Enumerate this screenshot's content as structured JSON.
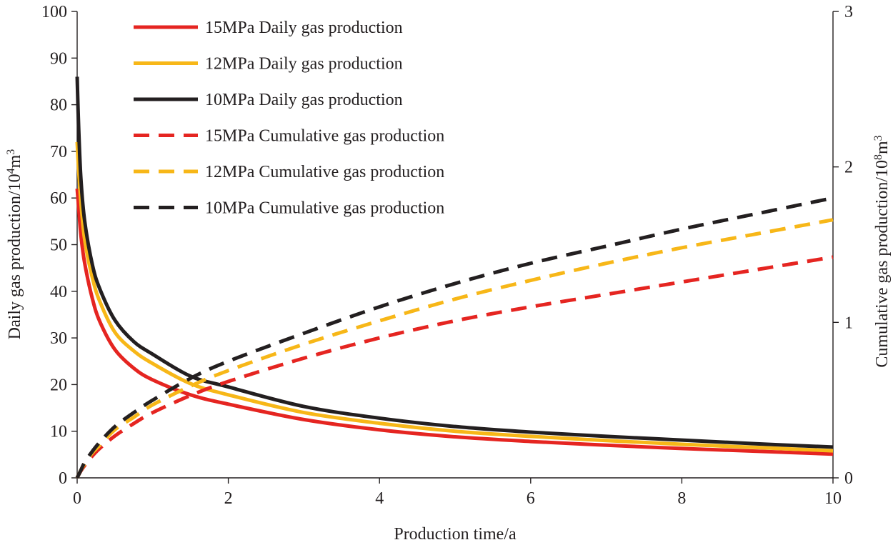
{
  "colors": {
    "red": "#e52521",
    "yellow": "#f7b718",
    "black": "#231f20"
  },
  "chart_data": {
    "type": "line",
    "x_axis": {
      "label": "Production time/a",
      "range": [
        0,
        10
      ],
      "ticks": [
        0,
        2,
        4,
        6,
        8,
        10
      ],
      "tick_labels": [
        "0",
        "2",
        "4",
        "6",
        "8",
        "10"
      ]
    },
    "y_axis_left": {
      "label_main": "Daily gas production/10",
      "label_sup1": "4",
      "label_mid": "m",
      "label_sup2": "3",
      "range": [
        0,
        100
      ],
      "ticks": [
        0,
        10,
        20,
        30,
        40,
        50,
        60,
        70,
        80,
        90,
        100
      ],
      "tick_labels": [
        "0",
        "10",
        "20",
        "30",
        "40",
        "50",
        "60",
        "70",
        "80",
        "90",
        "100"
      ]
    },
    "y_axis_right": {
      "label_main": "Cumulative gas production/10",
      "label_sup1": "8",
      "label_mid": "m",
      "label_sup2": "3",
      "range": [
        0,
        3
      ],
      "ticks": [
        0,
        1,
        2,
        3
      ],
      "tick_labels": [
        "0",
        "1",
        "2",
        "3"
      ]
    },
    "x": [
      0,
      0.02,
      0.05,
      0.1,
      0.2,
      0.3,
      0.5,
      0.75,
      1,
      1.5,
      2,
      3,
      4,
      5,
      6,
      7,
      8,
      9,
      10
    ],
    "series": [
      {
        "name": "15MPa Daily gas production",
        "axis": "left",
        "color_key": "red",
        "style": "solid",
        "values": [
          62,
          58,
          52,
          46,
          38.5,
          33.5,
          27.5,
          23.5,
          21,
          17.8,
          15.8,
          12.5,
          10.3,
          8.8,
          7.8,
          7,
          6.3,
          5.7,
          5.1
        ]
      },
      {
        "name": "12MPa Daily gas production",
        "axis": "left",
        "color_key": "yellow",
        "style": "solid",
        "values": [
          72,
          66,
          59,
          51,
          43,
          37.8,
          31.2,
          27.2,
          24.5,
          20.2,
          17.8,
          14,
          11.7,
          10,
          8.9,
          8,
          7.2,
          6.5,
          5.8
        ]
      },
      {
        "name": "10MPa Daily gas production",
        "axis": "left",
        "color_key": "black",
        "style": "solid",
        "values": [
          86,
          75,
          64,
          55,
          45.8,
          40.5,
          33.8,
          29.2,
          26.5,
          21.8,
          19.5,
          15.3,
          12.8,
          11,
          9.8,
          8.9,
          8.1,
          7.3,
          6.6
        ]
      },
      {
        "name": "15MPa Cumulative gas production",
        "axis": "right",
        "color_key": "red",
        "style": "dashed",
        "values": [
          0,
          0.02,
          0.045,
          0.08,
          0.14,
          0.19,
          0.27,
          0.35,
          0.42,
          0.53,
          0.62,
          0.77,
          0.9,
          1.01,
          1.1,
          1.18,
          1.26,
          1.34,
          1.42
        ]
      },
      {
        "name": "12MPa Cumulative gas production",
        "axis": "right",
        "color_key": "yellow",
        "style": "dashed",
        "values": [
          0,
          0.02,
          0.05,
          0.09,
          0.16,
          0.21,
          0.31,
          0.39,
          0.47,
          0.59,
          0.69,
          0.86,
          1.01,
          1.15,
          1.27,
          1.38,
          1.48,
          1.57,
          1.66
        ]
      },
      {
        "name": "10MPa Cumulative gas production",
        "axis": "right",
        "color_key": "black",
        "style": "dashed",
        "values": [
          0,
          0.02,
          0.05,
          0.1,
          0.17,
          0.23,
          0.33,
          0.42,
          0.5,
          0.64,
          0.75,
          0.93,
          1.1,
          1.25,
          1.38,
          1.49,
          1.6,
          1.7,
          1.8
        ]
      }
    ],
    "legend_position": "top-left"
  }
}
